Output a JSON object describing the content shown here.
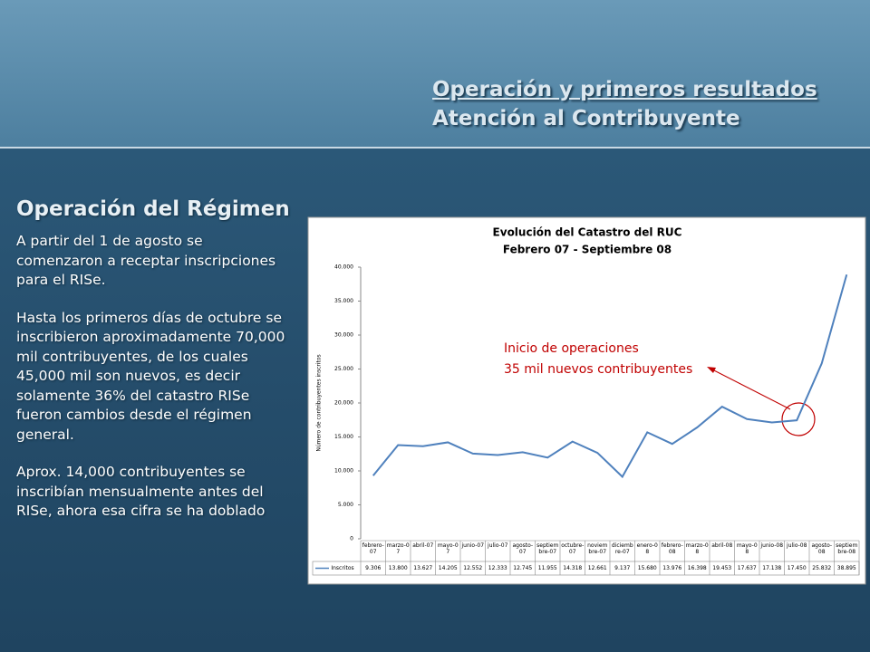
{
  "header": {
    "title": "Operación y primeros resultados",
    "subtitle": "Atención al Contribuyente"
  },
  "sidebar": {
    "heading": "Operación del Régimen",
    "paragraphs": [
      "A partir del 1 de agosto se comenzaron a receptar inscripciones para el RISe.",
      "Hasta los primeros días de octubre se inscribieron aproximadamente 70,000 mil contribuyentes, de los cuales 45,000 mil son nuevos, es decir solamente 36% del catastro RISe fueron cambios desde el régimen general.",
      "Aprox. 14,000 contribuyentes se inscribían mensualmente antes del RISe, ahora esa cifra se ha doblado"
    ]
  },
  "chart_data": {
    "type": "line",
    "title": "Evolución del Catastro del RUC",
    "subtitle": "Febrero 07 - Septiembre 08",
    "y_label": "Número de contribuyentes inscritos",
    "categories": [
      "febrero-07",
      "marzo-07",
      "abril-07",
      "mayo-07",
      "junio-07",
      "julio-07",
      "agosto-07",
      "septiembre-07",
      "octubre-07",
      "noviembre-07",
      "diciembre-07",
      "enero-08",
      "febrero-08",
      "marzo-08",
      "abril-08",
      "mayo-08",
      "junio-08",
      "julio-08",
      "agosto-08",
      "septiembre-08"
    ],
    "series": [
      {
        "name": "Inscritos",
        "color": "#4f81bd",
        "values": [
          9306,
          13800,
          13627,
          14205,
          12552,
          12333,
          12745,
          11955,
          14318,
          12661,
          9137,
          15680,
          13976,
          16398,
          19453,
          17637,
          17138,
          17450,
          25832,
          38895
        ],
        "value_labels": [
          "9.306",
          "13.800",
          "13.627",
          "14.205",
          "12.552",
          "12.333",
          "12.745",
          "11.955",
          "14.318",
          "12.661",
          "9.137",
          "15.680",
          "13.976",
          "16.398",
          "19.453",
          "17.637",
          "17.138",
          "17.450",
          "25.832",
          "38.895"
        ]
      }
    ],
    "ylim": [
      0,
      40000
    ],
    "yticks": [
      0,
      {
        "value": 5000,
        "label": "5.000"
      },
      {
        "value": 10000,
        "label": "10.000"
      },
      {
        "value": 15000,
        "label": "15.000"
      },
      {
        "value": 20000,
        "label": "20.000"
      },
      {
        "value": 25000,
        "label": "25.000"
      },
      {
        "value": 30000,
        "label": "30.000"
      },
      {
        "value": 35000,
        "label": "35.000"
      },
      {
        "value": 40000,
        "label": "40.000"
      }
    ],
    "annotation": [
      "Inicio de operaciones",
      "35 mil nuevos contribuyentes"
    ]
  }
}
